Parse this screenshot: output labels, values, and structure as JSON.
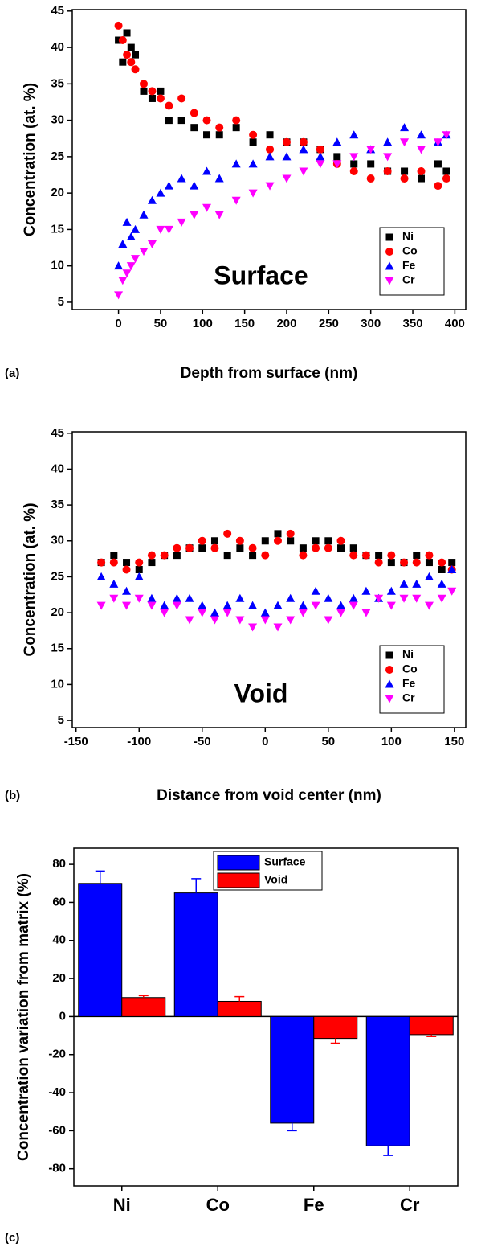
{
  "chart_data": [
    {
      "type": "scatter",
      "panel_label": "(a)",
      "annotation": "Surface",
      "x_label": "Depth from surface (nm)",
      "y_label": "Concentration (at. %)",
      "xlim": [
        -55,
        413
      ],
      "ylim": [
        4,
        45.2
      ],
      "xticks": [
        0,
        50,
        100,
        150,
        200,
        250,
        300,
        350,
        400
      ],
      "yticks": [
        5,
        10,
        15,
        20,
        25,
        30,
        35,
        40,
        45
      ],
      "legend": "lower right",
      "series": [
        {
          "name": "Ni",
          "color": "#000000",
          "marker": "square",
          "x": [
            0,
            5,
            10,
            15,
            20,
            30,
            40,
            50,
            60,
            75,
            90,
            105,
            120,
            140,
            160,
            180,
            200,
            220,
            240,
            260,
            280,
            300,
            320,
            340,
            360,
            380,
            390
          ],
          "values": [
            41,
            38,
            42,
            40,
            39,
            34,
            33,
            34,
            30,
            30,
            29,
            28,
            28,
            29,
            27,
            28,
            27,
            27,
            26,
            25,
            24,
            24,
            23,
            23,
            22,
            24,
            23
          ]
        },
        {
          "name": "Co",
          "color": "#ff0000",
          "marker": "circle",
          "x": [
            0,
            5,
            10,
            15,
            20,
            30,
            40,
            50,
            60,
            75,
            90,
            105,
            120,
            140,
            160,
            180,
            200,
            220,
            240,
            260,
            280,
            300,
            320,
            340,
            360,
            380,
            390
          ],
          "values": [
            43,
            41,
            39,
            38,
            37,
            35,
            34,
            33,
            32,
            33,
            31,
            30,
            29,
            30,
            28,
            26,
            27,
            27,
            26,
            24,
            23,
            22,
            23,
            22,
            23,
            21,
            22
          ]
        },
        {
          "name": "Fe",
          "color": "#0000ff",
          "marker": "triangle-up",
          "x": [
            0,
            5,
            10,
            15,
            20,
            30,
            40,
            50,
            60,
            75,
            90,
            105,
            120,
            140,
            160,
            180,
            200,
            220,
            240,
            260,
            280,
            300,
            320,
            340,
            360,
            380,
            390
          ],
          "values": [
            10,
            13,
            16,
            14,
            15,
            17,
            19,
            20,
            21,
            22,
            21,
            23,
            22,
            24,
            24,
            25,
            25,
            26,
            25,
            27,
            28,
            26,
            27,
            29,
            28,
            27,
            28
          ]
        },
        {
          "name": "Cr",
          "color": "#ff00ff",
          "marker": "triangle-down",
          "x": [
            0,
            5,
            10,
            15,
            20,
            30,
            40,
            50,
            60,
            75,
            90,
            105,
            120,
            140,
            160,
            180,
            200,
            220,
            240,
            260,
            280,
            300,
            320,
            340,
            360,
            380,
            390
          ],
          "values": [
            6,
            8,
            9,
            10,
            11,
            12,
            13,
            15,
            15,
            16,
            17,
            18,
            17,
            19,
            20,
            21,
            22,
            23,
            24,
            24,
            25,
            26,
            25,
            27,
            26,
            27,
            28
          ]
        }
      ]
    },
    {
      "type": "scatter",
      "panel_label": "(b)",
      "annotation": "Void",
      "x_label": "Distance from void center (nm)",
      "y_label": "Concentration (at. %)",
      "xlim": [
        -153,
        159
      ],
      "ylim": [
        4,
        45.2
      ],
      "xticks": [
        -150,
        -100,
        -50,
        0,
        50,
        100,
        150
      ],
      "yticks": [
        5,
        10,
        15,
        20,
        25,
        30,
        35,
        40,
        45
      ],
      "legend": "lower right",
      "series": [
        {
          "name": "Ni",
          "color": "#000000",
          "marker": "square",
          "x": [
            -130,
            -120,
            -110,
            -100,
            -90,
            -80,
            -70,
            -60,
            -50,
            -40,
            -30,
            -20,
            -10,
            0,
            10,
            20,
            30,
            40,
            50,
            60,
            70,
            80,
            90,
            100,
            110,
            120,
            130,
            140,
            148
          ],
          "values": [
            27,
            28,
            27,
            26,
            27,
            28,
            28,
            29,
            29,
            30,
            28,
            29,
            28,
            30,
            31,
            30,
            29,
            30,
            30,
            29,
            29,
            28,
            28,
            27,
            27,
            28,
            27,
            26,
            27
          ]
        },
        {
          "name": "Co",
          "color": "#ff0000",
          "marker": "circle",
          "x": [
            -130,
            -120,
            -110,
            -100,
            -90,
            -80,
            -70,
            -60,
            -50,
            -40,
            -30,
            -20,
            -10,
            0,
            10,
            20,
            30,
            40,
            50,
            60,
            70,
            80,
            90,
            100,
            110,
            120,
            130,
            140,
            148
          ],
          "values": [
            27,
            27,
            26,
            27,
            28,
            28,
            29,
            29,
            30,
            29,
            31,
            30,
            29,
            28,
            30,
            31,
            28,
            29,
            29,
            30,
            28,
            28,
            27,
            28,
            27,
            27,
            28,
            27,
            26
          ]
        },
        {
          "name": "Fe",
          "color": "#0000ff",
          "marker": "triangle-up",
          "x": [
            -130,
            -120,
            -110,
            -100,
            -90,
            -80,
            -70,
            -60,
            -50,
            -40,
            -30,
            -20,
            -10,
            0,
            10,
            20,
            30,
            40,
            50,
            60,
            70,
            80,
            90,
            100,
            110,
            120,
            130,
            140,
            148
          ],
          "values": [
            25,
            24,
            23,
            25,
            22,
            21,
            22,
            22,
            21,
            20,
            21,
            22,
            21,
            20,
            21,
            22,
            21,
            23,
            22,
            21,
            22,
            23,
            22,
            23,
            24,
            24,
            25,
            24,
            26
          ]
        },
        {
          "name": "Cr",
          "color": "#ff00ff",
          "marker": "triangle-down",
          "x": [
            -130,
            -120,
            -110,
            -100,
            -90,
            -80,
            -70,
            -60,
            -50,
            -40,
            -30,
            -20,
            -10,
            0,
            10,
            20,
            30,
            40,
            50,
            60,
            70,
            80,
            90,
            100,
            110,
            120,
            130,
            140,
            148
          ],
          "values": [
            21,
            22,
            21,
            22,
            21,
            20,
            21,
            19,
            20,
            19,
            20,
            19,
            18,
            19,
            18,
            19,
            20,
            21,
            19,
            20,
            21,
            20,
            22,
            21,
            22,
            22,
            21,
            22,
            23
          ]
        }
      ]
    },
    {
      "type": "bar",
      "panel_label": "(c)",
      "y_label": "Concentration variation from matrix (%)",
      "categories": [
        "Ni",
        "Co",
        "Fe",
        "Cr"
      ],
      "ylim": [
        -89,
        88.5
      ],
      "yticks": [
        -80,
        -60,
        -40,
        -20,
        0,
        20,
        40,
        60,
        80
      ],
      "legend": "upper center",
      "series": [
        {
          "name": "Surface",
          "color": "#0000ff",
          "values": [
            70,
            65,
            -56,
            -68
          ],
          "errors": [
            6.5,
            7.5,
            4,
            5
          ]
        },
        {
          "name": "Void",
          "color": "#ff0000",
          "values": [
            10,
            8,
            -11.5,
            -9.5
          ],
          "errors": [
            1,
            2.5,
            2.5,
            1
          ]
        }
      ]
    }
  ]
}
